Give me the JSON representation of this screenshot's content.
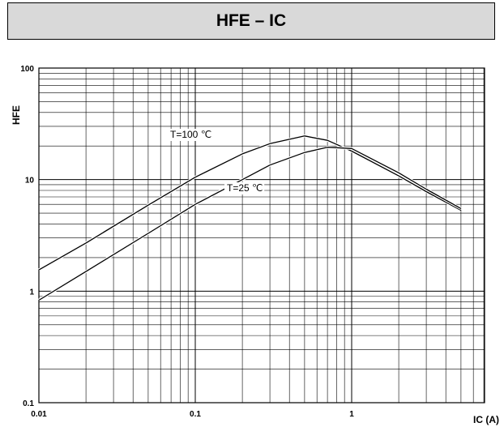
{
  "header": {
    "title": "HFE – IC"
  },
  "chart_data": {
    "type": "line",
    "title": "HFE – IC",
    "xlabel": "IC (A)",
    "ylabel": "HFE",
    "xscale": "log",
    "yscale": "log",
    "xlim": [
      0.01,
      6
    ],
    "ylim": [
      0.1,
      100
    ],
    "grid": true,
    "xticks": [
      {
        "value": 0.01,
        "label": "0.01"
      },
      {
        "value": 0.1,
        "label": "0.1"
      },
      {
        "value": 1,
        "label": "1"
      }
    ],
    "yticks": [
      {
        "value": 100,
        "label": "100"
      },
      {
        "value": 10,
        "label": "10"
      },
      {
        "value": 1,
        "label": "1"
      },
      {
        "value": 0.1,
        "label": "0.1"
      }
    ],
    "series": [
      {
        "name": "T=100 °C",
        "x": [
          0.01,
          0.02,
          0.05,
          0.1,
          0.2,
          0.3,
          0.5,
          0.7,
          1.0,
          2.0,
          3.0,
          5.0
        ],
        "y": [
          1.55,
          2.7,
          5.9,
          10.5,
          17.0,
          21.0,
          24.6,
          22.5,
          18.0,
          10.8,
          7.8,
          5.3
        ]
      },
      {
        "name": "T=25 °C",
        "x": [
          0.01,
          0.02,
          0.05,
          0.1,
          0.2,
          0.3,
          0.5,
          0.7,
          1.0,
          2.0,
          3.0,
          5.0
        ],
        "y": [
          0.83,
          1.5,
          3.3,
          6.0,
          10.0,
          13.5,
          17.5,
          19.5,
          19.0,
          11.5,
          8.2,
          5.5
        ]
      }
    ],
    "annotations": [
      {
        "text": "T=100 ℃",
        "series": "T=100 °C"
      },
      {
        "text": "T=25 ℃",
        "series": "T=25 °C"
      }
    ]
  }
}
